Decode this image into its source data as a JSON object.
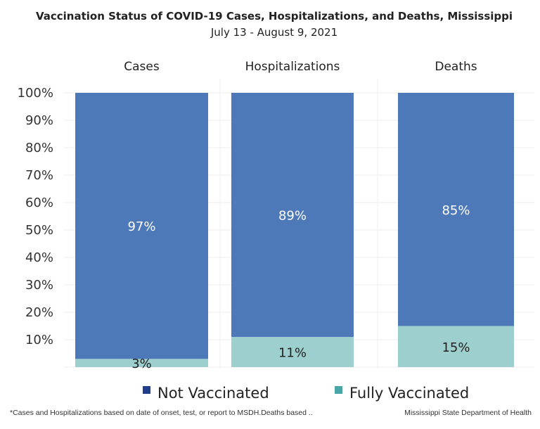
{
  "chart_data": {
    "type": "bar",
    "stacked": true,
    "title": "Vaccination Status of COVID-19 Cases, Hospitalizations, and Deaths, Mississippi",
    "subtitle": "July 13 - August 9, 2021",
    "categories": [
      "Cases",
      "Hospitalizations",
      "Deaths"
    ],
    "series": [
      {
        "name": "Not Vaccinated",
        "values": [
          97,
          89,
          85
        ],
        "labels": [
          "97%",
          "89%",
          "85%"
        ],
        "color": "#4e79b9",
        "label_color": "#ffffff"
      },
      {
        "name": "Fully Vaccinated",
        "values": [
          3,
          11,
          15
        ],
        "labels": [
          "3%",
          "11%",
          "15%"
        ],
        "color": "#9ccfce",
        "label_color": "#222222"
      }
    ],
    "yticks": [
      "10%",
      "20%",
      "30%",
      "40%",
      "50%",
      "60%",
      "70%",
      "80%",
      "90%",
      "100%"
    ],
    "ylim": [
      0,
      100
    ],
    "legend_position": "bottom",
    "legend_colors": [
      "#1f3e8c",
      "#4aa6a6"
    ],
    "footnote": "*Cases and Hospitalizations based on date of onset, test, or report to MSDH.Deaths based ..",
    "source": "Mississippi State Department of Health"
  }
}
